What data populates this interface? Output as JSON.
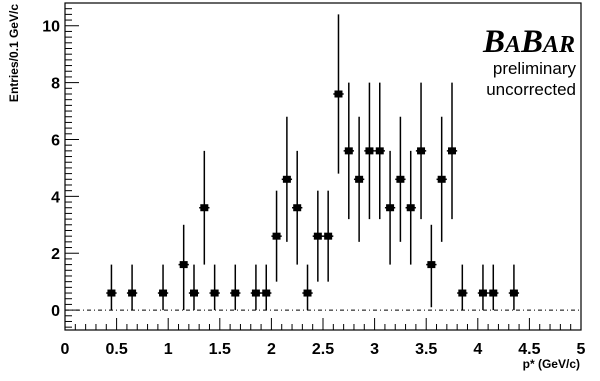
{
  "chart_data": {
    "type": "scatter",
    "title": "",
    "xlabel": "p* (GeV/c)",
    "ylabel": "Entries/0.1 GeV/c",
    "xlim": [
      0,
      5
    ],
    "ylim": [
      -0.7,
      10.8
    ],
    "x_ticks": [
      0,
      0.5,
      1,
      1.5,
      2,
      2.5,
      3,
      3.5,
      4,
      4.5,
      5
    ],
    "x_tick_labels": [
      "0",
      "0.5",
      "1",
      "1.5",
      "2",
      "2.5",
      "3",
      "3.5",
      "4",
      "4.5",
      "5"
    ],
    "y_ticks": [
      0,
      2,
      4,
      6,
      8,
      10
    ],
    "y_tick_labels": [
      "0",
      "2",
      "4",
      "6",
      "8",
      "10"
    ],
    "grid": false,
    "baseline": 0,
    "logo": {
      "B1": "B",
      "A1": "A",
      "B2": "B",
      "A2": "AR"
    },
    "annotations": [
      "preliminary",
      "uncorrected"
    ],
    "points": [
      {
        "x": 0.45,
        "y": 0.6,
        "err_low": 0.6,
        "err_high": 1.0
      },
      {
        "x": 0.65,
        "y": 0.6,
        "err_low": 0.6,
        "err_high": 1.0
      },
      {
        "x": 0.95,
        "y": 0.6,
        "err_low": 0.6,
        "err_high": 1.0
      },
      {
        "x": 1.15,
        "y": 1.6,
        "err_low": 1.6,
        "err_high": 1.4
      },
      {
        "x": 1.25,
        "y": 0.6,
        "err_low": 0.6,
        "err_high": 1.0
      },
      {
        "x": 1.35,
        "y": 3.6,
        "err_low": 2.0,
        "err_high": 2.0
      },
      {
        "x": 1.45,
        "y": 0.6,
        "err_low": 0.6,
        "err_high": 1.0
      },
      {
        "x": 1.65,
        "y": 0.6,
        "err_low": 0.6,
        "err_high": 1.0
      },
      {
        "x": 1.85,
        "y": 0.6,
        "err_low": 0.6,
        "err_high": 1.0
      },
      {
        "x": 1.95,
        "y": 0.6,
        "err_low": 0.6,
        "err_high": 1.0
      },
      {
        "x": 2.05,
        "y": 2.6,
        "err_low": 1.6,
        "err_high": 1.6
      },
      {
        "x": 2.15,
        "y": 4.6,
        "err_low": 2.2,
        "err_high": 2.2
      },
      {
        "x": 2.25,
        "y": 3.6,
        "err_low": 2.0,
        "err_high": 2.0
      },
      {
        "x": 2.35,
        "y": 0.6,
        "err_low": 0.6,
        "err_high": 1.0
      },
      {
        "x": 2.45,
        "y": 2.6,
        "err_low": 1.6,
        "err_high": 1.6
      },
      {
        "x": 2.55,
        "y": 2.6,
        "err_low": 1.6,
        "err_high": 1.6
      },
      {
        "x": 2.65,
        "y": 7.6,
        "err_low": 2.8,
        "err_high": 2.8
      },
      {
        "x": 2.75,
        "y": 5.6,
        "err_low": 2.4,
        "err_high": 2.4
      },
      {
        "x": 2.85,
        "y": 4.6,
        "err_low": 2.2,
        "err_high": 2.2
      },
      {
        "x": 2.95,
        "y": 5.6,
        "err_low": 2.4,
        "err_high": 2.4
      },
      {
        "x": 3.05,
        "y": 5.6,
        "err_low": 2.4,
        "err_high": 2.4
      },
      {
        "x": 3.15,
        "y": 3.6,
        "err_low": 2.0,
        "err_high": 2.0
      },
      {
        "x": 3.25,
        "y": 4.6,
        "err_low": 2.2,
        "err_high": 2.2
      },
      {
        "x": 3.35,
        "y": 3.6,
        "err_low": 2.0,
        "err_high": 2.0
      },
      {
        "x": 3.45,
        "y": 5.6,
        "err_low": 2.4,
        "err_high": 2.4
      },
      {
        "x": 3.55,
        "y": 1.6,
        "err_low": 1.5,
        "err_high": 1.4
      },
      {
        "x": 3.65,
        "y": 4.6,
        "err_low": 2.2,
        "err_high": 2.2
      },
      {
        "x": 3.75,
        "y": 5.6,
        "err_low": 2.4,
        "err_high": 2.4
      },
      {
        "x": 3.85,
        "y": 0.6,
        "err_low": 0.6,
        "err_high": 1.0
      },
      {
        "x": 4.05,
        "y": 0.6,
        "err_low": 0.6,
        "err_high": 1.0
      },
      {
        "x": 4.15,
        "y": 0.6,
        "err_low": 0.6,
        "err_high": 1.0
      },
      {
        "x": 4.35,
        "y": 0.6,
        "err_low": 0.6,
        "err_high": 1.0
      }
    ]
  }
}
